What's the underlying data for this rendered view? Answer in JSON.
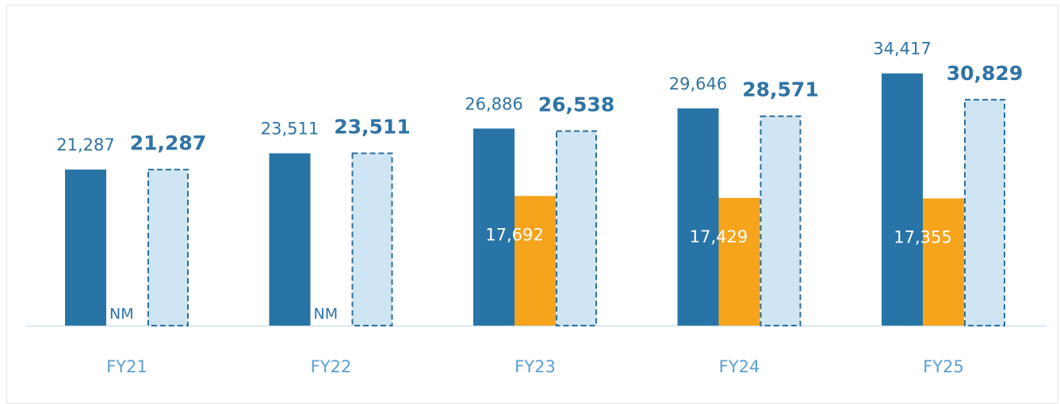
{
  "chart_data": {
    "type": "bar",
    "categories": [
      "FY21",
      "FY22",
      "FY23",
      "FY24",
      "FY25"
    ],
    "series": [
      {
        "color": "#2874a6",
        "values": [
          21287,
          23511,
          26886,
          29646,
          34417
        ],
        "value_labels": [
          "21,287",
          "23,511",
          "26,886",
          "29,646",
          "34,417"
        ]
      },
      {
        "color": "#f5a41c",
        "values": [
          null,
          null,
          17692,
          17429,
          17355
        ],
        "value_labels": [
          "NM",
          "NM",
          "17,692",
          "17,429",
          "17,355"
        ]
      },
      {
        "color": "#cfe5f3",
        "edgecolor": "#2a6fa0",
        "linestyle": "dashed",
        "values": [
          21287,
          23511,
          26538,
          28571,
          30829
        ],
        "value_labels": [
          "21,287",
          "23,511",
          "26,538",
          "28,571",
          "30,829"
        ]
      }
    ],
    "ylim": [
      0,
      44000
    ]
  }
}
